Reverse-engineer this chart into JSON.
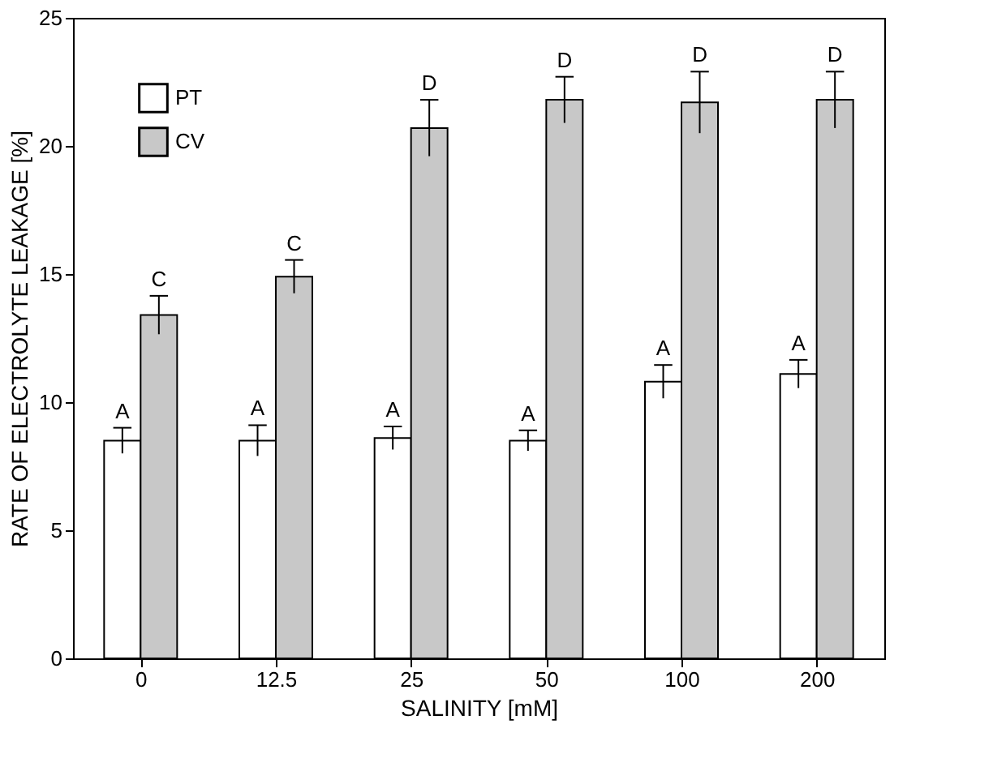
{
  "chart_data": {
    "type": "bar",
    "xlabel": "SALINITY  [mM]",
    "ylabel": "RATE OF ELECTROLYTE LEAKAGE [%]",
    "categories": [
      "0",
      "12.5",
      "25",
      "50",
      "100",
      "200"
    ],
    "series": [
      {
        "name": "PT",
        "color": "#ffffff",
        "values": [
          8.5,
          8.5,
          8.6,
          8.5,
          10.8,
          11.1
        ],
        "errors": [
          0.5,
          0.6,
          0.45,
          0.4,
          0.65,
          0.55
        ]
      },
      {
        "name": "CV",
        "color": "#c8c8c8",
        "values": [
          13.4,
          14.9,
          20.7,
          21.8,
          21.7,
          21.8
        ],
        "errors": [
          0.75,
          0.65,
          1.1,
          0.9,
          1.2,
          1.1
        ]
      }
    ],
    "annotations": [
      "A",
      "C",
      "A",
      "C",
      "A",
      "D",
      "A",
      "D",
      "A",
      "D",
      "A",
      "D"
    ],
    "ylim": [
      0,
      25
    ],
    "yticks": [
      0,
      5,
      10,
      15,
      20,
      25
    ],
    "grid": false,
    "legend": "top left"
  }
}
